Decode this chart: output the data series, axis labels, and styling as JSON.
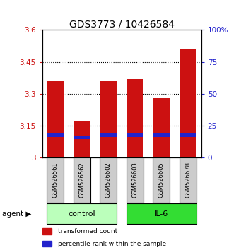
{
  "title": "GDS3773 / 10426584",
  "samples": [
    "GSM526561",
    "GSM526562",
    "GSM526602",
    "GSM526603",
    "GSM526605",
    "GSM526678"
  ],
  "bar_tops": [
    3.36,
    3.17,
    3.36,
    3.37,
    3.28,
    3.51
  ],
  "bar_bottoms": [
    3.0,
    3.0,
    3.0,
    3.0,
    3.0,
    3.0
  ],
  "blue_values": [
    3.105,
    3.095,
    3.105,
    3.105,
    3.105,
    3.105
  ],
  "ylim": [
    3.0,
    3.6
  ],
  "yticks_left": [
    3.0,
    3.15,
    3.3,
    3.45,
    3.6
  ],
  "yticks_left_labels": [
    "3",
    "3.15",
    "3.3",
    "3.45",
    "3.6"
  ],
  "yticks_right_vals": [
    0,
    25,
    50,
    75,
    100
  ],
  "yticks_right_labels": [
    "0",
    "25",
    "50",
    "75",
    "100%"
  ],
  "groups": [
    {
      "label": "control",
      "indices": [
        0,
        1,
        2
      ],
      "color": "#bbffbb"
    },
    {
      "label": "IL-6",
      "indices": [
        3,
        4,
        5
      ],
      "color": "#33dd33"
    }
  ],
  "bar_color": "#cc1111",
  "blue_color": "#2222cc",
  "bar_width": 0.6,
  "agent_label": "agent",
  "legend_items": [
    {
      "label": "transformed count",
      "color": "#cc1111"
    },
    {
      "label": "percentile rank within the sample",
      "color": "#2222cc"
    }
  ],
  "grid_linestyle": ":",
  "grid_color": "black",
  "sample_box_color": "#cccccc",
  "title_fontsize": 10,
  "tick_fontsize": 7.5,
  "left_tick_color": "#cc1111",
  "right_tick_color": "#2222cc"
}
